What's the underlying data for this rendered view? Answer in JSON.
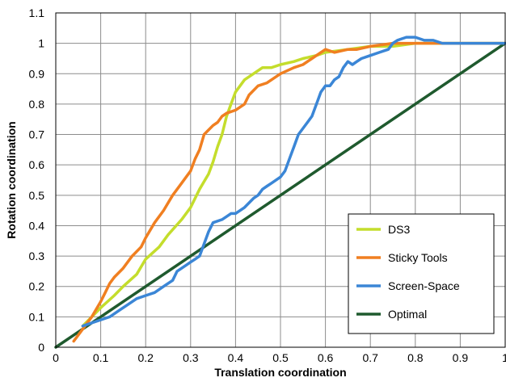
{
  "chart_data": {
    "type": "line",
    "xlabel": "Translation coordination",
    "ylabel": "Rotation coordination",
    "xlim": [
      0,
      1
    ],
    "ylim": [
      0,
      1.1
    ],
    "x_ticks": [
      "0",
      "0.1",
      "0.2",
      "0.3",
      "0.4",
      "0.5",
      "0.6",
      "0.7",
      "0.8",
      "0.9",
      "1"
    ],
    "y_ticks": [
      "0",
      "0.1",
      "0.2",
      "0.3",
      "0.4",
      "0.5",
      "0.6",
      "0.7",
      "0.8",
      "0.9",
      "1",
      "1.1"
    ],
    "grid": true,
    "legend_position": "bottom-right",
    "series": [
      {
        "name": "DS3",
        "color": "#c4dd2c",
        "points": [
          [
            0.06,
            0.07
          ],
          [
            0.08,
            0.1
          ],
          [
            0.1,
            0.13
          ],
          [
            0.13,
            0.17
          ],
          [
            0.15,
            0.2
          ],
          [
            0.18,
            0.24
          ],
          [
            0.2,
            0.29
          ],
          [
            0.23,
            0.33
          ],
          [
            0.25,
            0.37
          ],
          [
            0.28,
            0.42
          ],
          [
            0.3,
            0.46
          ],
          [
            0.32,
            0.52
          ],
          [
            0.34,
            0.57
          ],
          [
            0.35,
            0.61
          ],
          [
            0.36,
            0.66
          ],
          [
            0.37,
            0.7
          ],
          [
            0.38,
            0.76
          ],
          [
            0.39,
            0.8
          ],
          [
            0.4,
            0.84
          ],
          [
            0.41,
            0.86
          ],
          [
            0.42,
            0.88
          ],
          [
            0.44,
            0.9
          ],
          [
            0.46,
            0.92
          ],
          [
            0.48,
            0.92
          ],
          [
            0.5,
            0.93
          ],
          [
            0.53,
            0.94
          ],
          [
            0.55,
            0.95
          ],
          [
            0.58,
            0.96
          ],
          [
            0.6,
            0.97
          ],
          [
            0.65,
            0.98
          ],
          [
            0.7,
            0.99
          ],
          [
            0.75,
            0.99
          ],
          [
            0.8,
            1.0
          ],
          [
            0.85,
            1.0
          ],
          [
            0.9,
            1.0
          ],
          [
            1.0,
            1.0
          ]
        ]
      },
      {
        "name": "Sticky Tools",
        "color": "#f07f21",
        "points": [
          [
            0.04,
            0.02
          ],
          [
            0.06,
            0.06
          ],
          [
            0.08,
            0.1
          ],
          [
            0.1,
            0.15
          ],
          [
            0.11,
            0.18
          ],
          [
            0.12,
            0.21
          ],
          [
            0.13,
            0.23
          ],
          [
            0.15,
            0.26
          ],
          [
            0.17,
            0.3
          ],
          [
            0.19,
            0.33
          ],
          [
            0.2,
            0.36
          ],
          [
            0.22,
            0.41
          ],
          [
            0.24,
            0.45
          ],
          [
            0.26,
            0.5
          ],
          [
            0.28,
            0.54
          ],
          [
            0.3,
            0.58
          ],
          [
            0.31,
            0.62
          ],
          [
            0.32,
            0.65
          ],
          [
            0.33,
            0.7
          ],
          [
            0.35,
            0.73
          ],
          [
            0.36,
            0.74
          ],
          [
            0.37,
            0.76
          ],
          [
            0.38,
            0.77
          ],
          [
            0.4,
            0.78
          ],
          [
            0.42,
            0.8
          ],
          [
            0.43,
            0.83
          ],
          [
            0.45,
            0.86
          ],
          [
            0.47,
            0.87
          ],
          [
            0.5,
            0.9
          ],
          [
            0.53,
            0.92
          ],
          [
            0.55,
            0.93
          ],
          [
            0.57,
            0.95
          ],
          [
            0.59,
            0.97
          ],
          [
            0.6,
            0.98
          ],
          [
            0.62,
            0.97
          ],
          [
            0.65,
            0.98
          ],
          [
            0.67,
            0.98
          ],
          [
            0.7,
            0.99
          ],
          [
            0.75,
            1.0
          ],
          [
            0.8,
            1.0
          ],
          [
            0.85,
            1.0
          ],
          [
            0.9,
            1.0
          ],
          [
            0.95,
            1.0
          ],
          [
            1.0,
            1.0
          ]
        ]
      },
      {
        "name": "Screen-Space",
        "color": "#3b86d6",
        "points": [
          [
            0.06,
            0.07
          ],
          [
            0.08,
            0.08
          ],
          [
            0.1,
            0.09
          ],
          [
            0.12,
            0.1
          ],
          [
            0.14,
            0.12
          ],
          [
            0.16,
            0.14
          ],
          [
            0.18,
            0.16
          ],
          [
            0.2,
            0.17
          ],
          [
            0.22,
            0.18
          ],
          [
            0.24,
            0.2
          ],
          [
            0.26,
            0.22
          ],
          [
            0.27,
            0.25
          ],
          [
            0.29,
            0.27
          ],
          [
            0.3,
            0.28
          ],
          [
            0.31,
            0.29
          ],
          [
            0.32,
            0.3
          ],
          [
            0.33,
            0.34
          ],
          [
            0.34,
            0.38
          ],
          [
            0.35,
            0.41
          ],
          [
            0.37,
            0.42
          ],
          [
            0.38,
            0.43
          ],
          [
            0.39,
            0.44
          ],
          [
            0.4,
            0.44
          ],
          [
            0.42,
            0.46
          ],
          [
            0.44,
            0.49
          ],
          [
            0.45,
            0.5
          ],
          [
            0.46,
            0.52
          ],
          [
            0.47,
            0.53
          ],
          [
            0.48,
            0.54
          ],
          [
            0.5,
            0.56
          ],
          [
            0.51,
            0.58
          ],
          [
            0.52,
            0.62
          ],
          [
            0.53,
            0.66
          ],
          [
            0.54,
            0.7
          ],
          [
            0.55,
            0.72
          ],
          [
            0.57,
            0.76
          ],
          [
            0.58,
            0.8
          ],
          [
            0.59,
            0.84
          ],
          [
            0.6,
            0.86
          ],
          [
            0.61,
            0.86
          ],
          [
            0.62,
            0.88
          ],
          [
            0.63,
            0.89
          ],
          [
            0.64,
            0.92
          ],
          [
            0.65,
            0.94
          ],
          [
            0.66,
            0.93
          ],
          [
            0.67,
            0.94
          ],
          [
            0.68,
            0.95
          ],
          [
            0.7,
            0.96
          ],
          [
            0.72,
            0.97
          ],
          [
            0.74,
            0.98
          ],
          [
            0.75,
            1.0
          ],
          [
            0.76,
            1.01
          ],
          [
            0.78,
            1.02
          ],
          [
            0.8,
            1.02
          ],
          [
            0.82,
            1.01
          ],
          [
            0.84,
            1.01
          ],
          [
            0.86,
            1.0
          ],
          [
            0.9,
            1.0
          ],
          [
            0.95,
            1.0
          ],
          [
            1.0,
            1.0
          ]
        ]
      },
      {
        "name": "Optimal",
        "color": "#1f5a2e",
        "points": [
          [
            0,
            0
          ],
          [
            1,
            1
          ]
        ]
      }
    ]
  }
}
